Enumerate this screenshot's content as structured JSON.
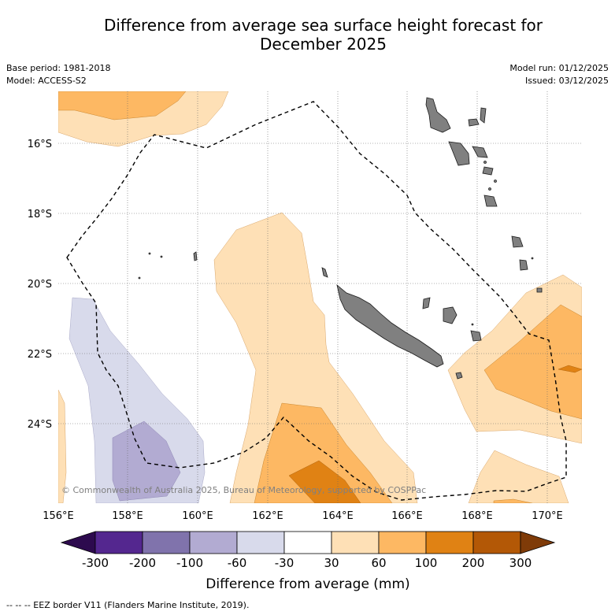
{
  "title_line1": "Difference from average sea surface height forecast for",
  "title_line2": "December 2025",
  "base_period": "Base period: 1981-2018",
  "model": "Model: ACCESS-S2",
  "model_run": "Model run: 01/12/2025",
  "issued": "Issued: 03/12/2025",
  "lat_labels": [
    "16°S",
    "18°S",
    "20°S",
    "22°S",
    "24°S"
  ],
  "lon_labels": [
    "156°E",
    "158°E",
    "160°E",
    "162°E",
    "164°E",
    "166°E",
    "168°E",
    "170°E"
  ],
  "copyright": "© Commonwealth of Australia 2025, Bureau of Meteorology, supported by COSPPac",
  "colorbar": {
    "title": "Difference from average (mm)",
    "ticks": [
      "-300",
      "-200",
      "-100",
      "-60",
      "-30",
      "30",
      "60",
      "100",
      "200",
      "300"
    ],
    "colors": [
      "#2d0a4e",
      "#54278f",
      "#8073ac",
      "#b2abd2",
      "#d8daeb",
      "#ffffff",
      "#fee0b6",
      "#fdb863",
      "#e08214",
      "#b35806",
      "#7f3b08"
    ]
  },
  "footnote": "--  --  -- EEZ border V11 (Flanders Marine Institute, 2019)."
}
